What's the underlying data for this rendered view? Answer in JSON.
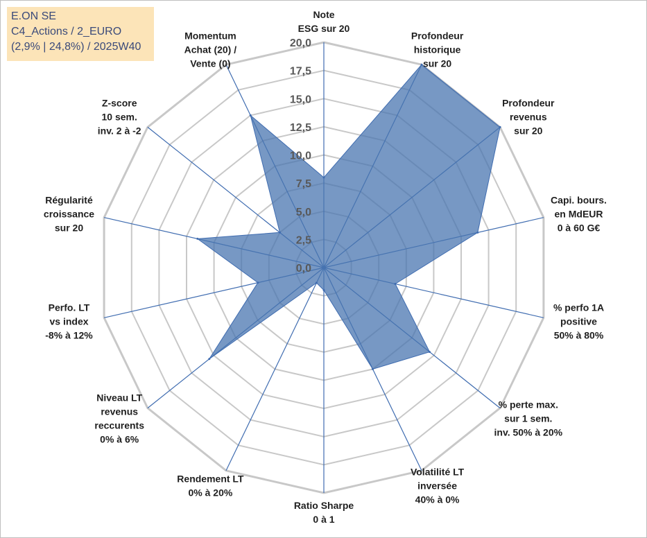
{
  "info_box": {
    "line1": "E.ON SE",
    "line2": "C4_Actions / 2_EURO",
    "line3": "(2,9% | 24,8%) / 2025W40"
  },
  "colors": {
    "fill": "#4a76b0",
    "stroke": "#3f6cb0",
    "grid": "#c8c8c8",
    "info_bg": "#fce4b8"
  },
  "chart_data": {
    "type": "radar",
    "rmin": 0,
    "rmax": 20,
    "ticks": [
      "0,0",
      "2,5",
      "5,0",
      "7,5",
      "10,0",
      "12,5",
      "15,0",
      "17,5",
      "20,0"
    ],
    "axes": [
      {
        "label": [
          "Note",
          "ESG sur 20"
        ],
        "value": 8
      },
      {
        "label": [
          "Profondeur",
          "historique",
          "sur 20"
        ],
        "value": 20
      },
      {
        "label": [
          "Profondeur",
          "revenus",
          "sur 20"
        ],
        "value": 20
      },
      {
        "label": [
          "Capi. bours.",
          "en MdEUR",
          "0 à 60 G€"
        ],
        "value": 14
      },
      {
        "label": [
          "% perfo 1A",
          "positive",
          "50% à 80%"
        ],
        "value": 6.5
      },
      {
        "label": [
          "% perte max.",
          "sur 1 sem.",
          "inv. 50% à 20%"
        ],
        "value": 12
      },
      {
        "label": [
          "Volatilité LT",
          "inversée",
          "40% à 0%"
        ],
        "value": 10
      },
      {
        "label": [
          "Ratio Sharpe",
          "0 à 1"
        ],
        "value": 2
      },
      {
        "label": [
          "Rendement LT",
          "0% à 20%"
        ],
        "value": 1.5
      },
      {
        "label": [
          "Niveau LT",
          "revenus",
          "reccurents",
          "0% à 6%"
        ],
        "value": 13
      },
      {
        "label": [
          "Perfo. LT",
          "vs index",
          "-8% à 12%"
        ],
        "value": 6
      },
      {
        "label": [
          "Régularité",
          "croissance",
          "sur 20"
        ],
        "value": 11.5
      },
      {
        "label": [
          "Z-score",
          "10 sem.",
          "inv. 2 à -2"
        ],
        "value": 5
      },
      {
        "label": [
          "Momentum",
          "Achat (20) /",
          "Vente (0)"
        ],
        "value": 15
      }
    ]
  }
}
